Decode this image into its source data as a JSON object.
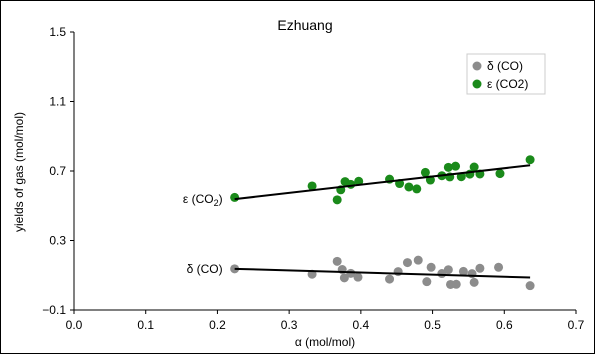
{
  "chart_data": {
    "type": "scatter",
    "title": "Ezhuang",
    "xlabel": "α (mol/mol)",
    "ylabel": "yields of gas (mol/mol)",
    "xlim": [
      0.0,
      0.7
    ],
    "ylim": [
      -0.1,
      1.5
    ],
    "xticks": [
      "0.0",
      "0.1",
      "0.2",
      "0.3",
      "0.4",
      "0.5",
      "0.6",
      "0.7"
    ],
    "yticks": [
      "-0.1",
      "0.3",
      "0.7",
      "1.1",
      "1.5"
    ],
    "grid": false,
    "legend_position": "top-right",
    "series": [
      {
        "name": "δ (CO)",
        "color": "#8c8c8c",
        "fit_label": "δ (CO)",
        "fit": {
          "x": [
            0.224,
            0.636
          ],
          "y": [
            0.137,
            0.087
          ]
        },
        "points": [
          [
            0.224,
            0.137
          ],
          [
            0.332,
            0.106
          ],
          [
            0.367,
            0.18
          ],
          [
            0.374,
            0.133
          ],
          [
            0.377,
            0.085
          ],
          [
            0.386,
            0.111
          ],
          [
            0.396,
            0.089
          ],
          [
            0.44,
            0.078
          ],
          [
            0.452,
            0.121
          ],
          [
            0.465,
            0.173
          ],
          [
            0.48,
            0.187
          ],
          [
            0.492,
            0.063
          ],
          [
            0.498,
            0.146
          ],
          [
            0.513,
            0.11
          ],
          [
            0.522,
            0.132
          ],
          [
            0.525,
            0.047
          ],
          [
            0.533,
            0.048
          ],
          [
            0.543,
            0.122
          ],
          [
            0.555,
            0.109
          ],
          [
            0.558,
            0.059
          ],
          [
            0.566,
            0.14
          ],
          [
            0.592,
            0.146
          ],
          [
            0.636,
            0.04
          ]
        ]
      },
      {
        "name": "ε (CO2)",
        "color": "#1a8a1a",
        "fit_label": "ε (CO2)",
        "fit": {
          "x": [
            0.224,
            0.636
          ],
          "y": [
            0.538,
            0.733
          ]
        },
        "points": [
          [
            0.224,
            0.548
          ],
          [
            0.332,
            0.614
          ],
          [
            0.367,
            0.534
          ],
          [
            0.372,
            0.592
          ],
          [
            0.378,
            0.639
          ],
          [
            0.386,
            0.623
          ],
          [
            0.397,
            0.641
          ],
          [
            0.44,
            0.653
          ],
          [
            0.454,
            0.628
          ],
          [
            0.467,
            0.608
          ],
          [
            0.478,
            0.597
          ],
          [
            0.49,
            0.692
          ],
          [
            0.497,
            0.648
          ],
          [
            0.513,
            0.673
          ],
          [
            0.522,
            0.721
          ],
          [
            0.524,
            0.666
          ],
          [
            0.532,
            0.728
          ],
          [
            0.54,
            0.667
          ],
          [
            0.552,
            0.682
          ],
          [
            0.558,
            0.723
          ],
          [
            0.566,
            0.683
          ],
          [
            0.594,
            0.685
          ],
          [
            0.636,
            0.765
          ]
        ]
      }
    ]
  }
}
